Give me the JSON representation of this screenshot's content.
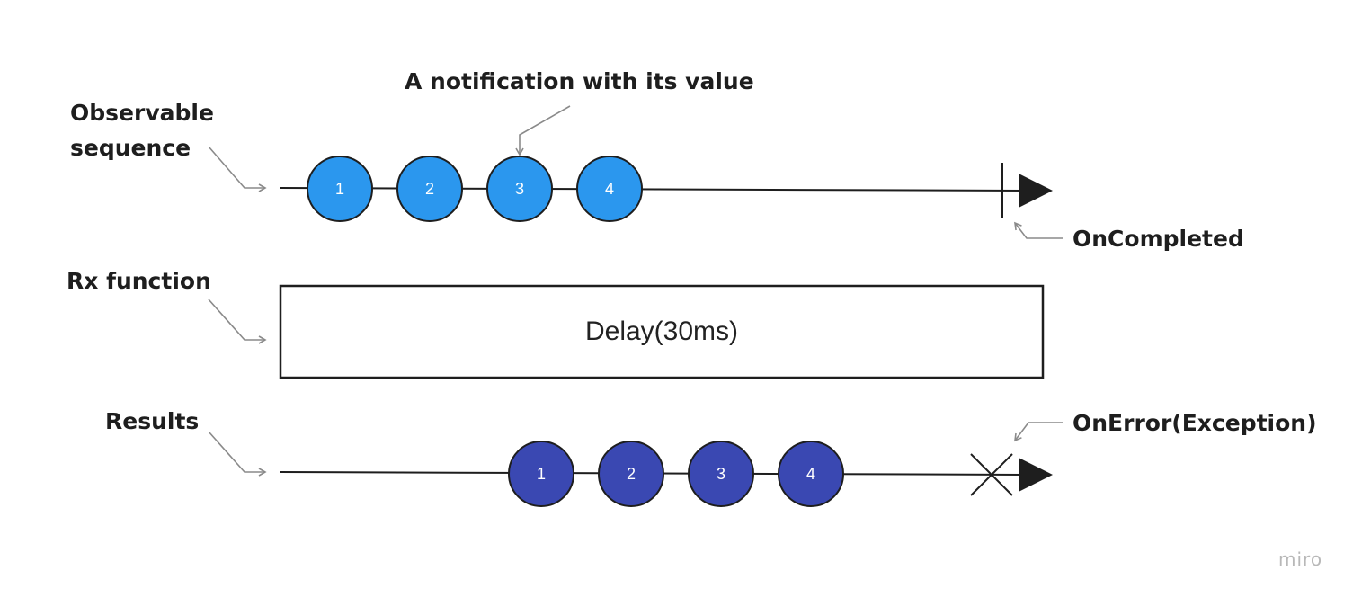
{
  "labels": {
    "observable_line1": "Observable",
    "observable_line2": "sequence",
    "notification": "A notification with its value",
    "on_completed": "OnCompleted",
    "rx_function": "Rx function",
    "results": "Results",
    "on_error": "OnError(Exception)"
  },
  "operator": {
    "text": "Delay(30ms)"
  },
  "observable_sequence": {
    "values": [
      "1",
      "2",
      "3",
      "4"
    ],
    "color": "#2b97ee",
    "stroke": "#1e1e1e"
  },
  "result_sequence": {
    "values": [
      "1",
      "2",
      "3",
      "4"
    ],
    "color": "#3a48b2",
    "stroke": "#1e1e1e"
  },
  "colors": {
    "line": "#1e1e1e",
    "connector": "#8a8a8a",
    "watermark": "#b8b8b8"
  },
  "watermark": "miro"
}
